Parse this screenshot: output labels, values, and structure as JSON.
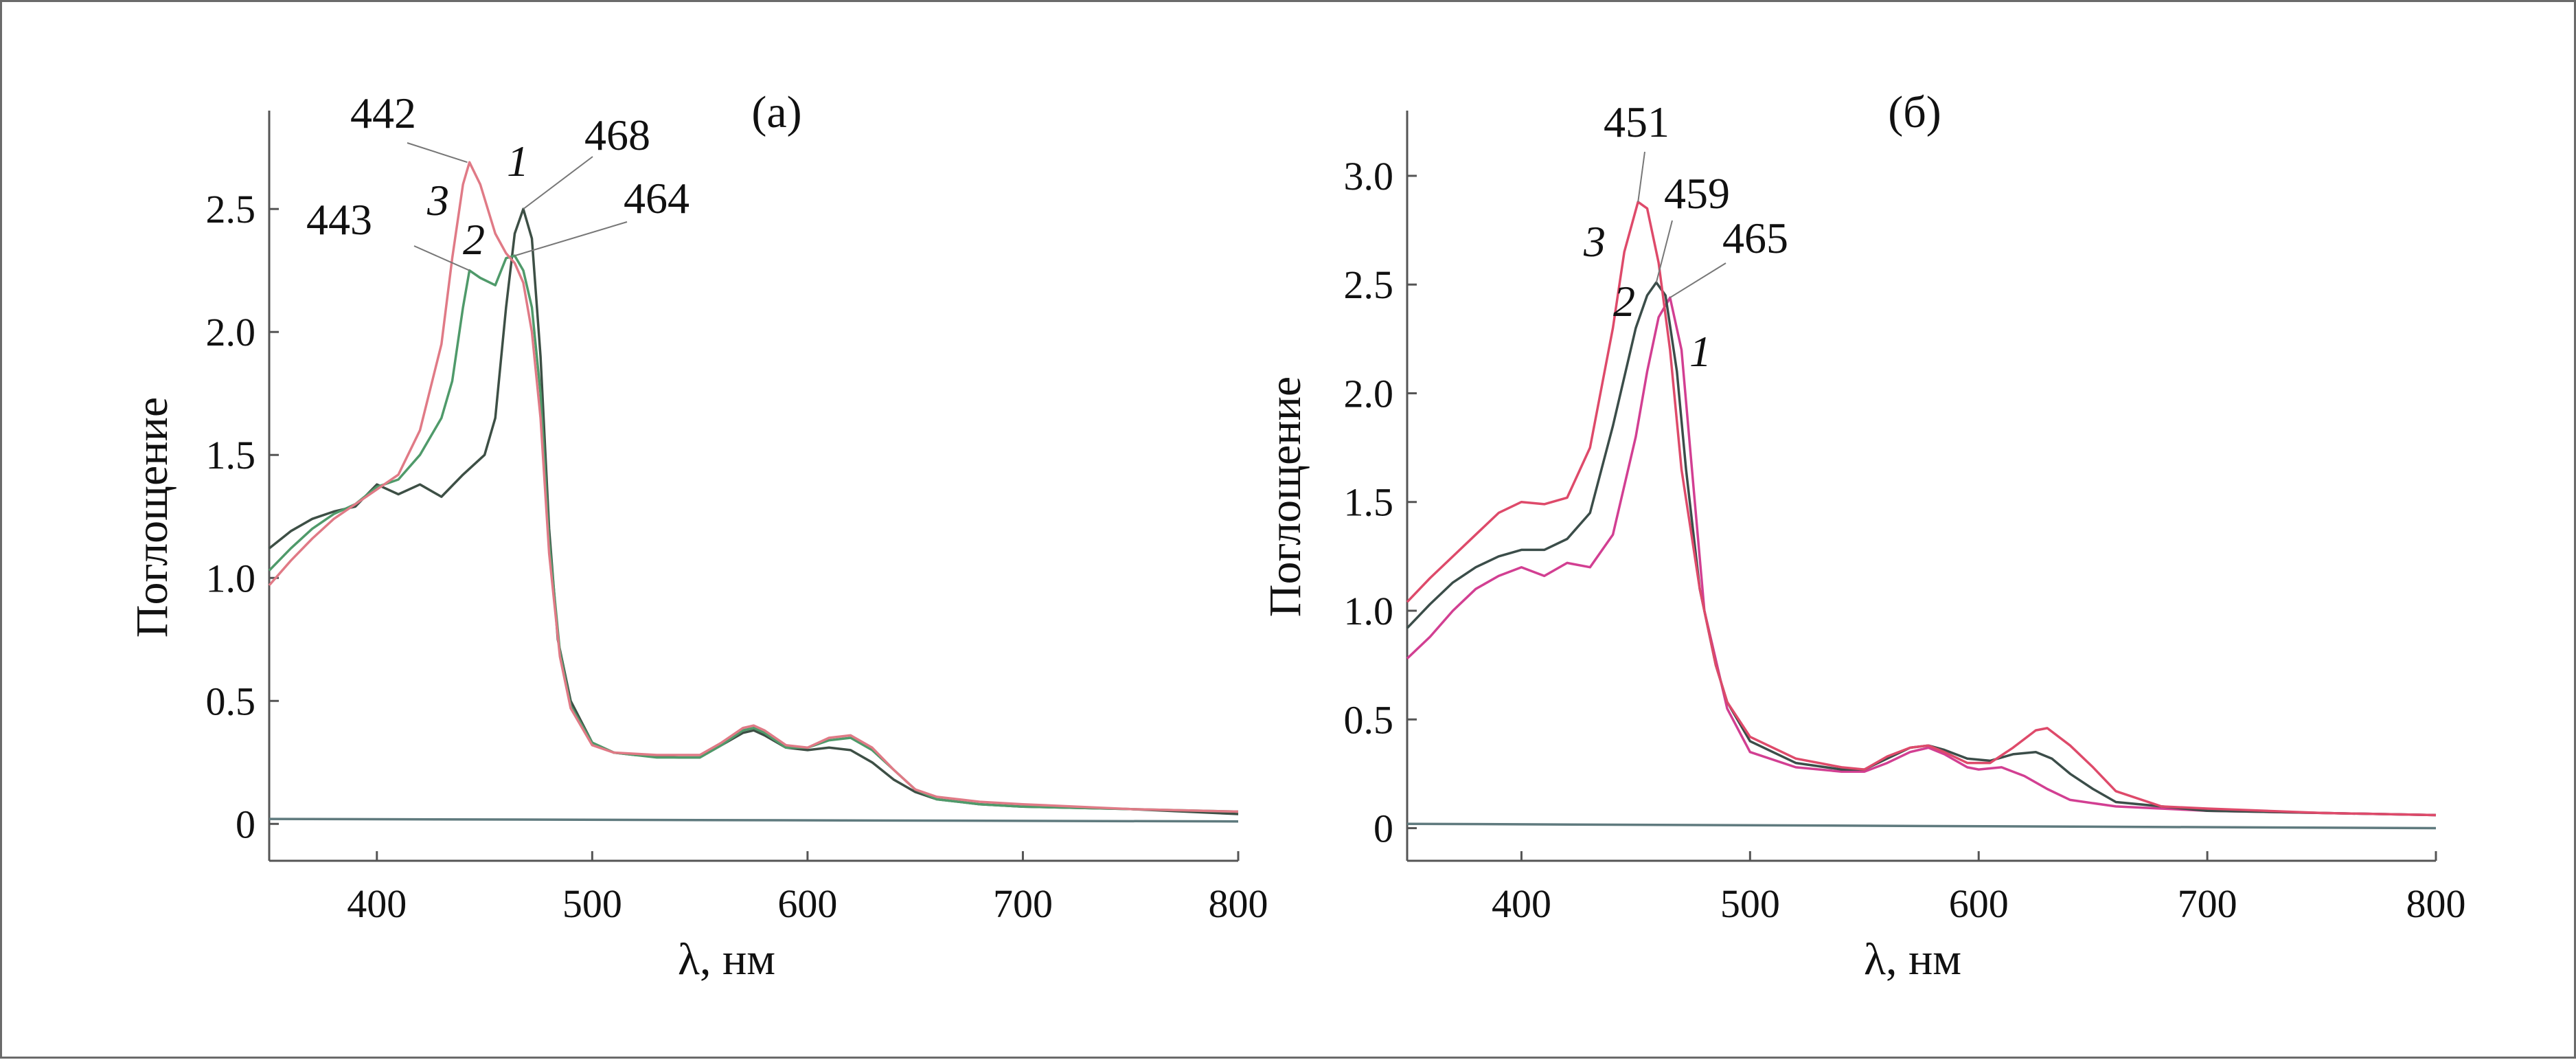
{
  "figure": {
    "panels": [
      "a",
      "b"
    ]
  },
  "chart_data": [
    {
      "type": "line",
      "panel_label": "(а)",
      "xlabel": "λ, нм",
      "ylabel": "Поглощение",
      "xlim": [
        350,
        800
      ],
      "ylim": [
        -0.15,
        2.9
      ],
      "x_ticks": [
        400,
        500,
        600,
        700,
        800
      ],
      "y_ticks": [
        0,
        0.5,
        1.0,
        1.5,
        2.0,
        2.5
      ],
      "y_tick_labels": [
        "0",
        "0.5",
        "1.0",
        "1.5",
        "2.0",
        "2.5"
      ],
      "grid": false,
      "legend": "none",
      "series": [
        {
          "id": "1",
          "color": "#3d4f45",
          "points": [
            [
              350,
              1.12
            ],
            [
              360,
              1.19
            ],
            [
              370,
              1.24
            ],
            [
              380,
              1.27
            ],
            [
              390,
              1.29
            ],
            [
              400,
              1.38
            ],
            [
              410,
              1.34
            ],
            [
              420,
              1.38
            ],
            [
              430,
              1.33
            ],
            [
              440,
              1.42
            ],
            [
              450,
              1.5
            ],
            [
              455,
              1.65
            ],
            [
              460,
              2.1
            ],
            [
              464,
              2.4
            ],
            [
              468,
              2.5
            ],
            [
              472,
              2.38
            ],
            [
              476,
              1.9
            ],
            [
              480,
              1.2
            ],
            [
              484,
              0.75
            ],
            [
              490,
              0.5
            ],
            [
              500,
              0.33
            ],
            [
              510,
              0.29
            ],
            [
              520,
              0.28
            ],
            [
              540,
              0.27
            ],
            [
              550,
              0.27
            ],
            [
              560,
              0.32
            ],
            [
              570,
              0.37
            ],
            [
              575,
              0.38
            ],
            [
              580,
              0.36
            ],
            [
              590,
              0.31
            ],
            [
              600,
              0.3
            ],
            [
              610,
              0.31
            ],
            [
              620,
              0.3
            ],
            [
              630,
              0.25
            ],
            [
              640,
              0.18
            ],
            [
              650,
              0.13
            ],
            [
              660,
              0.1
            ],
            [
              680,
              0.08
            ],
            [
              700,
              0.07
            ],
            [
              750,
              0.06
            ],
            [
              800,
              0.04
            ]
          ]
        },
        {
          "id": "2",
          "color": "#4f9a6a",
          "points": [
            [
              350,
              1.03
            ],
            [
              360,
              1.12
            ],
            [
              370,
              1.2
            ],
            [
              380,
              1.26
            ],
            [
              390,
              1.3
            ],
            [
              400,
              1.37
            ],
            [
              410,
              1.4
            ],
            [
              420,
              1.5
            ],
            [
              430,
              1.65
            ],
            [
              435,
              1.8
            ],
            [
              440,
              2.1
            ],
            [
              443,
              2.25
            ],
            [
              448,
              2.22
            ],
            [
              455,
              2.19
            ],
            [
              460,
              2.3
            ],
            [
              464,
              2.31
            ],
            [
              468,
              2.25
            ],
            [
              472,
              2.1
            ],
            [
              476,
              1.75
            ],
            [
              480,
              1.15
            ],
            [
              485,
              0.7
            ],
            [
              490,
              0.48
            ],
            [
              500,
              0.33
            ],
            [
              510,
              0.29
            ],
            [
              530,
              0.27
            ],
            [
              550,
              0.27
            ],
            [
              560,
              0.32
            ],
            [
              570,
              0.38
            ],
            [
              575,
              0.39
            ],
            [
              580,
              0.37
            ],
            [
              590,
              0.31
            ],
            [
              600,
              0.31
            ],
            [
              610,
              0.34
            ],
            [
              620,
              0.35
            ],
            [
              630,
              0.3
            ],
            [
              640,
              0.22
            ],
            [
              650,
              0.14
            ],
            [
              660,
              0.1
            ],
            [
              680,
              0.08
            ],
            [
              700,
              0.07
            ],
            [
              750,
              0.06
            ],
            [
              800,
              0.05
            ]
          ]
        },
        {
          "id": "3",
          "color": "#e07a86",
          "points": [
            [
              350,
              0.97
            ],
            [
              360,
              1.07
            ],
            [
              370,
              1.16
            ],
            [
              380,
              1.24
            ],
            [
              390,
              1.3
            ],
            [
              400,
              1.36
            ],
            [
              410,
              1.42
            ],
            [
              420,
              1.6
            ],
            [
              430,
              1.95
            ],
            [
              435,
              2.3
            ],
            [
              440,
              2.6
            ],
            [
              443,
              2.69
            ],
            [
              448,
              2.6
            ],
            [
              455,
              2.4
            ],
            [
              460,
              2.32
            ],
            [
              464,
              2.28
            ],
            [
              468,
              2.2
            ],
            [
              472,
              2.0
            ],
            [
              476,
              1.65
            ],
            [
              480,
              1.1
            ],
            [
              485,
              0.68
            ],
            [
              490,
              0.47
            ],
            [
              500,
              0.32
            ],
            [
              510,
              0.29
            ],
            [
              530,
              0.28
            ],
            [
              550,
              0.28
            ],
            [
              560,
              0.33
            ],
            [
              570,
              0.39
            ],
            [
              575,
              0.4
            ],
            [
              580,
              0.38
            ],
            [
              590,
              0.32
            ],
            [
              600,
              0.31
            ],
            [
              610,
              0.35
            ],
            [
              620,
              0.36
            ],
            [
              630,
              0.31
            ],
            [
              640,
              0.22
            ],
            [
              650,
              0.14
            ],
            [
              660,
              0.11
            ],
            [
              680,
              0.09
            ],
            [
              700,
              0.08
            ],
            [
              750,
              0.06
            ],
            [
              800,
              0.05
            ]
          ]
        },
        {
          "id": "baseline",
          "color": "#5f7a7e",
          "points": [
            [
              350,
              0.02
            ],
            [
              800,
              0.01
            ]
          ]
        }
      ],
      "annotations": {
        "peaks": [
          {
            "text": "442",
            "x": 442,
            "y": 2.69
          },
          {
            "text": "443",
            "x": 443,
            "y": 2.25
          },
          {
            "text": "468",
            "x": 468,
            "y": 2.5
          },
          {
            "text": "464",
            "x": 464,
            "y": 2.31
          }
        ],
        "curve_numbers": [
          "1",
          "2",
          "3"
        ]
      }
    },
    {
      "type": "line",
      "panel_label": "(б)",
      "xlabel": "λ, нм",
      "ylabel": "Поглощение",
      "xlim": [
        350,
        800
      ],
      "ylim": [
        -0.15,
        3.3
      ],
      "x_ticks": [
        400,
        500,
        600,
        700,
        800
      ],
      "y_ticks": [
        0,
        0.5,
        1.0,
        1.5,
        2.0,
        2.5,
        3.0
      ],
      "y_tick_labels": [
        "0",
        "0.5",
        "1.0",
        "1.5",
        "2.0",
        "2.5",
        "3.0"
      ],
      "grid": false,
      "legend": "none",
      "series": [
        {
          "id": "1",
          "color": "#d23f92",
          "points": [
            [
              350,
              0.78
            ],
            [
              360,
              0.88
            ],
            [
              370,
              1.0
            ],
            [
              380,
              1.1
            ],
            [
              390,
              1.16
            ],
            [
              400,
              1.2
            ],
            [
              410,
              1.16
            ],
            [
              420,
              1.22
            ],
            [
              430,
              1.2
            ],
            [
              440,
              1.35
            ],
            [
              450,
              1.8
            ],
            [
              455,
              2.1
            ],
            [
              460,
              2.35
            ],
            [
              465,
              2.44
            ],
            [
              470,
              2.2
            ],
            [
              475,
              1.6
            ],
            [
              480,
              1.0
            ],
            [
              490,
              0.55
            ],
            [
              500,
              0.35
            ],
            [
              520,
              0.28
            ],
            [
              540,
              0.26
            ],
            [
              550,
              0.26
            ],
            [
              560,
              0.3
            ],
            [
              570,
              0.35
            ],
            [
              578,
              0.37
            ],
            [
              585,
              0.34
            ],
            [
              595,
              0.28
            ],
            [
              600,
              0.27
            ],
            [
              610,
              0.28
            ],
            [
              620,
              0.24
            ],
            [
              630,
              0.18
            ],
            [
              640,
              0.13
            ],
            [
              660,
              0.1
            ],
            [
              700,
              0.08
            ],
            [
              750,
              0.07
            ],
            [
              800,
              0.06
            ]
          ]
        },
        {
          "id": "2",
          "color": "#3b4d49",
          "points": [
            [
              350,
              0.92
            ],
            [
              360,
              1.03
            ],
            [
              370,
              1.13
            ],
            [
              380,
              1.2
            ],
            [
              390,
              1.25
            ],
            [
              400,
              1.28
            ],
            [
              410,
              1.28
            ],
            [
              420,
              1.33
            ],
            [
              430,
              1.45
            ],
            [
              440,
              1.85
            ],
            [
              450,
              2.3
            ],
            [
              455,
              2.45
            ],
            [
              459,
              2.51
            ],
            [
              463,
              2.45
            ],
            [
              468,
              2.1
            ],
            [
              472,
              1.65
            ],
            [
              478,
              1.1
            ],
            [
              485,
              0.75
            ],
            [
              490,
              0.58
            ],
            [
              500,
              0.4
            ],
            [
              520,
              0.3
            ],
            [
              540,
              0.27
            ],
            [
              550,
              0.27
            ],
            [
              560,
              0.32
            ],
            [
              570,
              0.37
            ],
            [
              578,
              0.38
            ],
            [
              585,
              0.36
            ],
            [
              595,
              0.32
            ],
            [
              605,
              0.31
            ],
            [
              615,
              0.34
            ],
            [
              625,
              0.35
            ],
            [
              632,
              0.32
            ],
            [
              640,
              0.25
            ],
            [
              650,
              0.18
            ],
            [
              660,
              0.12
            ],
            [
              700,
              0.08
            ],
            [
              750,
              0.07
            ],
            [
              800,
              0.06
            ]
          ]
        },
        {
          "id": "3",
          "color": "#de4a6a",
          "points": [
            [
              350,
              1.04
            ],
            [
              360,
              1.15
            ],
            [
              370,
              1.25
            ],
            [
              380,
              1.35
            ],
            [
              390,
              1.45
            ],
            [
              400,
              1.5
            ],
            [
              410,
              1.49
            ],
            [
              420,
              1.52
            ],
            [
              430,
              1.75
            ],
            [
              440,
              2.3
            ],
            [
              445,
              2.65
            ],
            [
              451,
              2.88
            ],
            [
              455,
              2.85
            ],
            [
              460,
              2.6
            ],
            [
              465,
              2.2
            ],
            [
              470,
              1.65
            ],
            [
              478,
              1.1
            ],
            [
              485,
              0.75
            ],
            [
              490,
              0.58
            ],
            [
              500,
              0.42
            ],
            [
              520,
              0.32
            ],
            [
              540,
              0.28
            ],
            [
              550,
              0.27
            ],
            [
              560,
              0.33
            ],
            [
              570,
              0.37
            ],
            [
              578,
              0.38
            ],
            [
              585,
              0.35
            ],
            [
              595,
              0.3
            ],
            [
              605,
              0.3
            ],
            [
              615,
              0.37
            ],
            [
              625,
              0.45
            ],
            [
              630,
              0.46
            ],
            [
              640,
              0.38
            ],
            [
              650,
              0.28
            ],
            [
              660,
              0.17
            ],
            [
              680,
              0.1
            ],
            [
              700,
              0.09
            ],
            [
              750,
              0.07
            ],
            [
              800,
              0.06
            ]
          ]
        },
        {
          "id": "baseline",
          "color": "#5f7a7e",
          "points": [
            [
              350,
              0.02
            ],
            [
              800,
              0.0
            ]
          ]
        }
      ],
      "annotations": {
        "peaks": [
          {
            "text": "451",
            "x": 451,
            "y": 2.88
          },
          {
            "text": "459",
            "x": 459,
            "y": 2.51
          },
          {
            "text": "465",
            "x": 465,
            "y": 2.44
          }
        ],
        "curve_numbers": [
          "3",
          "2",
          "1"
        ]
      }
    }
  ]
}
